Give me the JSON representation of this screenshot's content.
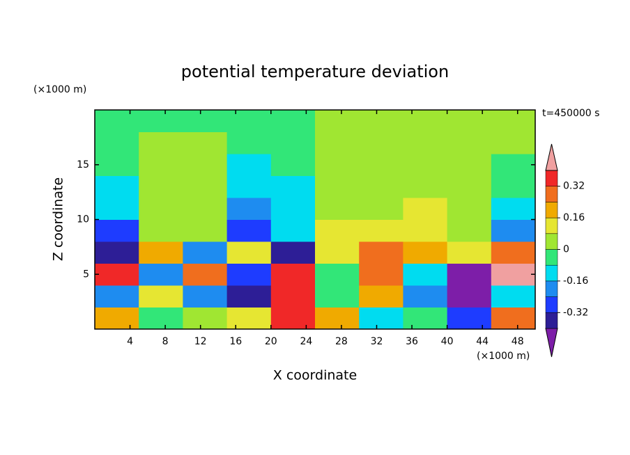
{
  "chart_data": {
    "type": "contour",
    "title": "potential temperature deviation",
    "x_label": "X coordinate",
    "y_label": "Z coordinate",
    "x_unit": "(×1000 m)",
    "y_unit": "(×1000 m)",
    "annotation": "t=450000 s",
    "xlim": [
      0,
      50
    ],
    "xticks": [
      4,
      8,
      12,
      16,
      20,
      24,
      28,
      32,
      36,
      40,
      44,
      48
    ],
    "ylim": [
      0,
      20
    ],
    "yticks": [
      5,
      10,
      15
    ],
    "x": [
      2.5,
      7.5,
      12.5,
      17.5,
      22.5,
      27.5,
      32.5,
      37.5,
      42.5,
      47.5
    ],
    "z": [
      1,
      3,
      5,
      7,
      9,
      11,
      13,
      15,
      17,
      19
    ],
    "values": [
      [
        0.2,
        -0.04,
        0.04,
        0.12,
        0.36,
        0.2,
        -0.12,
        -0.04,
        -0.28,
        0.28
      ],
      [
        -0.2,
        0.12,
        -0.2,
        -0.36,
        0.36,
        -0.04,
        0.2,
        -0.2,
        -0.45,
        -0.12
      ],
      [
        0.36,
        -0.2,
        0.28,
        -0.28,
        0.36,
        -0.04,
        0.28,
        -0.12,
        -0.45,
        0.45
      ],
      [
        -0.36,
        0.2,
        -0.2,
        0.12,
        -0.36,
        0.12,
        0.28,
        0.2,
        0.12,
        0.28
      ],
      [
        -0.28,
        0.04,
        0.04,
        -0.28,
        -0.12,
        0.12,
        0.12,
        0.12,
        0.04,
        -0.2
      ],
      [
        -0.12,
        0.04,
        0.04,
        -0.2,
        -0.12,
        0.04,
        0.04,
        0.12,
        0.04,
        -0.12
      ],
      [
        -0.12,
        0.04,
        0.04,
        -0.12,
        -0.12,
        0.04,
        0.04,
        0.04,
        0.04,
        -0.04
      ],
      [
        -0.04,
        0.04,
        0.04,
        -0.12,
        -0.04,
        0.04,
        0.04,
        0.04,
        0.04,
        -0.04
      ],
      [
        -0.04,
        0.04,
        0.04,
        -0.04,
        -0.04,
        0.04,
        0.04,
        0.04,
        0.04,
        0.04
      ],
      [
        -0.04,
        -0.04,
        -0.04,
        -0.04,
        -0.04,
        0.04,
        0.04,
        0.04,
        0.04,
        0.04
      ]
    ],
    "levels": [
      -0.4,
      -0.32,
      -0.24,
      -0.16,
      -0.08,
      0,
      0.08,
      0.16,
      0.24,
      0.32,
      0.4
    ],
    "colors": [
      "#7d1ea8",
      "#2d1e96",
      "#1e3cff",
      "#1e8cf0",
      "#00dcf0",
      "#32e678",
      "#a0e632",
      "#e6e632",
      "#f0aa00",
      "#f06e1e",
      "#f02828",
      "#f0a0a0"
    ],
    "colorbar_ticks": [
      -0.32,
      -0.16,
      0,
      0.16,
      0.32
    ]
  }
}
